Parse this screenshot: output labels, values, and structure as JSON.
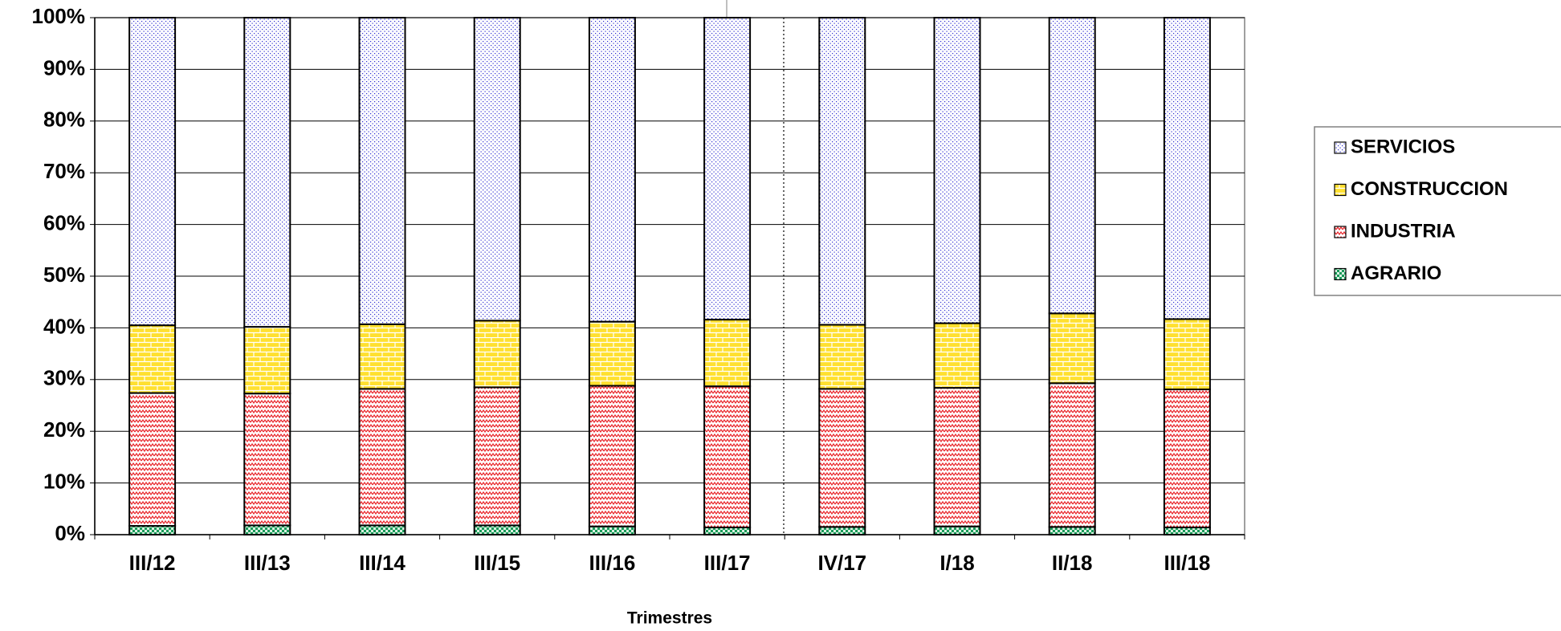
{
  "chart_data": {
    "type": "stacked_bar_100",
    "x_label": "Trimestres",
    "categories": [
      "III/12",
      "III/13",
      "III/14",
      "III/15",
      "III/16",
      "III/17",
      "IV/17",
      "I/18",
      "II/18",
      "III/18"
    ],
    "series": [
      {
        "name": "AGRARIO",
        "color": "#1a9a5a",
        "values": [
          1.7,
          1.8,
          1.8,
          1.8,
          1.6,
          1.4,
          1.5,
          1.6,
          1.5,
          1.4
        ]
      },
      {
        "name": "INDUSTRIA",
        "color": "#e8262b",
        "values": [
          25.7,
          25.5,
          26.4,
          26.7,
          27.2,
          27.3,
          26.7,
          26.8,
          27.8,
          26.7
        ]
      },
      {
        "name": "CONSTRUCCION",
        "color": "#ffe030",
        "values": [
          13.1,
          12.9,
          12.5,
          12.9,
          12.4,
          12.9,
          12.4,
          12.5,
          13.5,
          13.6
        ]
      },
      {
        "name": "SERVICIOS",
        "color": "#2a2ad0",
        "values": [
          59.5,
          59.8,
          59.3,
          58.6,
          58.8,
          58.4,
          59.4,
          59.1,
          57.2,
          58.3
        ]
      }
    ],
    "ylim": [
      0,
      100
    ],
    "yticks": [
      {
        "value": 0,
        "label": "0%"
      },
      {
        "value": 10,
        "label": "10%"
      },
      {
        "value": 20,
        "label": "20%"
      },
      {
        "value": 30,
        "label": "30%"
      },
      {
        "value": 40,
        "label": "40%"
      },
      {
        "value": 50,
        "label": "50%"
      },
      {
        "value": 60,
        "label": "60%"
      },
      {
        "value": 70,
        "label": "70%"
      },
      {
        "value": 80,
        "label": "80%"
      },
      {
        "value": 90,
        "label": "90%"
      },
      {
        "value": 100,
        "label": "100%"
      }
    ],
    "grid": true,
    "legend": "right"
  }
}
